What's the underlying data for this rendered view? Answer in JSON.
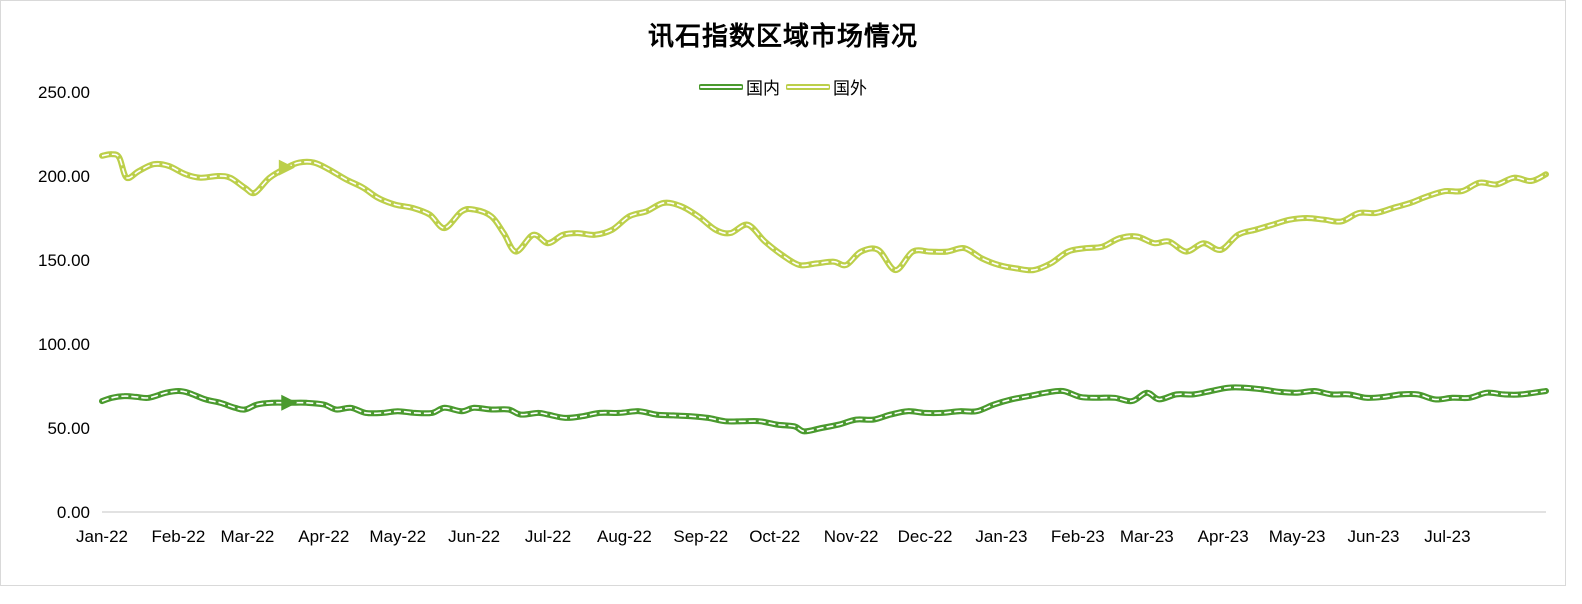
{
  "chart_data": {
    "type": "line",
    "title": "讯石指数区域市场情况",
    "ylim": [
      0,
      250
    ],
    "y_ticks": [
      "0.00",
      "50.00",
      "100.00",
      "150.00",
      "200.00",
      "250.00"
    ],
    "x_tick_labels": [
      "Jan-22",
      "Feb-22",
      "Mar-22",
      "Apr-22",
      "May-22",
      "Jun-22",
      "Jul-22",
      "Aug-22",
      "Sep-22",
      "Oct-22",
      "Nov-22",
      "Dec-22",
      "Jan-23",
      "Feb-23",
      "Mar-23",
      "Apr-23",
      "May-23",
      "Jun-23",
      "Jul-23"
    ],
    "legend_position": "top-center",
    "x_range": [
      "2022-01-01",
      "2023-08-10"
    ],
    "series": [
      {
        "name": "国内",
        "color": "#4a9a2e",
        "points": [
          [
            "2022-01-01",
            66
          ],
          [
            "2022-01-05",
            68
          ],
          [
            "2022-01-10",
            69
          ],
          [
            "2022-01-15",
            68.5
          ],
          [
            "2022-01-20",
            68
          ],
          [
            "2022-01-27",
            71
          ],
          [
            "2022-02-01",
            72
          ],
          [
            "2022-02-05",
            71
          ],
          [
            "2022-02-12",
            67
          ],
          [
            "2022-02-18",
            65
          ],
          [
            "2022-02-24",
            62
          ],
          [
            "2022-02-28",
            61
          ],
          [
            "2022-03-05",
            64
          ],
          [
            "2022-03-11",
            65
          ],
          [
            "2022-03-18",
            65
          ],
          [
            "2022-03-25",
            65
          ],
          [
            "2022-04-01",
            64
          ],
          [
            "2022-04-06",
            61
          ],
          [
            "2022-04-12",
            62
          ],
          [
            "2022-04-18",
            59
          ],
          [
            "2022-04-25",
            59
          ],
          [
            "2022-05-01",
            60
          ],
          [
            "2022-05-08",
            59
          ],
          [
            "2022-05-15",
            59
          ],
          [
            "2022-05-20",
            62
          ],
          [
            "2022-05-27",
            60
          ],
          [
            "2022-06-01",
            62
          ],
          [
            "2022-06-08",
            61
          ],
          [
            "2022-06-15",
            61
          ],
          [
            "2022-06-20",
            58
          ],
          [
            "2022-06-27",
            59
          ],
          [
            "2022-07-01",
            58
          ],
          [
            "2022-07-08",
            56
          ],
          [
            "2022-07-15",
            57
          ],
          [
            "2022-07-22",
            59
          ],
          [
            "2022-07-30",
            59
          ],
          [
            "2022-08-07",
            60
          ],
          [
            "2022-08-14",
            58
          ],
          [
            "2022-08-21",
            57.5
          ],
          [
            "2022-08-28",
            57
          ],
          [
            "2022-09-04",
            56
          ],
          [
            "2022-09-11",
            54
          ],
          [
            "2022-09-18",
            54
          ],
          [
            "2022-09-25",
            54
          ],
          [
            "2022-10-02",
            52
          ],
          [
            "2022-10-09",
            51
          ],
          [
            "2022-10-13",
            48
          ],
          [
            "2022-10-20",
            50
          ],
          [
            "2022-10-27",
            52
          ],
          [
            "2022-11-03",
            55
          ],
          [
            "2022-11-10",
            55
          ],
          [
            "2022-11-17",
            58
          ],
          [
            "2022-11-24",
            60
          ],
          [
            "2022-12-01",
            59
          ],
          [
            "2022-12-08",
            59
          ],
          [
            "2022-12-15",
            60
          ],
          [
            "2022-12-22",
            60
          ],
          [
            "2022-12-29",
            64
          ],
          [
            "2023-01-05",
            67
          ],
          [
            "2023-01-12",
            69
          ],
          [
            "2023-01-19",
            71
          ],
          [
            "2023-01-26",
            72
          ],
          [
            "2023-02-02",
            68.5
          ],
          [
            "2023-02-09",
            68
          ],
          [
            "2023-02-16",
            68
          ],
          [
            "2023-02-23",
            66
          ],
          [
            "2023-03-01",
            71
          ],
          [
            "2023-03-06",
            67
          ],
          [
            "2023-03-13",
            70
          ],
          [
            "2023-03-20",
            70
          ],
          [
            "2023-03-27",
            72
          ],
          [
            "2023-04-03",
            74
          ],
          [
            "2023-04-10",
            74
          ],
          [
            "2023-04-17",
            73
          ],
          [
            "2023-04-24",
            71.5
          ],
          [
            "2023-05-01",
            71
          ],
          [
            "2023-05-08",
            72
          ],
          [
            "2023-05-15",
            70
          ],
          [
            "2023-05-22",
            70
          ],
          [
            "2023-05-29",
            68
          ],
          [
            "2023-06-05",
            68.5
          ],
          [
            "2023-06-12",
            70
          ],
          [
            "2023-06-19",
            70
          ],
          [
            "2023-06-26",
            67
          ],
          [
            "2023-07-03",
            68
          ],
          [
            "2023-07-10",
            68
          ],
          [
            "2023-07-17",
            71
          ],
          [
            "2023-07-24",
            70
          ],
          [
            "2023-07-31",
            70
          ],
          [
            "2023-08-10",
            72
          ]
        ]
      },
      {
        "name": "国外",
        "color": "#bccf4a",
        "points": [
          [
            "2022-01-01",
            212
          ],
          [
            "2022-01-05",
            213
          ],
          [
            "2022-01-08",
            211
          ],
          [
            "2022-01-11",
            199
          ],
          [
            "2022-01-16",
            203
          ],
          [
            "2022-01-22",
            207
          ],
          [
            "2022-01-28",
            206
          ],
          [
            "2022-02-04",
            201
          ],
          [
            "2022-02-10",
            199
          ],
          [
            "2022-02-17",
            200
          ],
          [
            "2022-02-22",
            199
          ],
          [
            "2022-02-28",
            193
          ],
          [
            "2022-03-04",
            190
          ],
          [
            "2022-03-10",
            199
          ],
          [
            "2022-03-17",
            205
          ],
          [
            "2022-03-22",
            208
          ],
          [
            "2022-03-28",
            208
          ],
          [
            "2022-04-03",
            204
          ],
          [
            "2022-04-10",
            198
          ],
          [
            "2022-04-17",
            193
          ],
          [
            "2022-04-23",
            187
          ],
          [
            "2022-04-30",
            183
          ],
          [
            "2022-05-07",
            181
          ],
          [
            "2022-05-14",
            177
          ],
          [
            "2022-05-20",
            169
          ],
          [
            "2022-05-27",
            179
          ],
          [
            "2022-06-01",
            180
          ],
          [
            "2022-06-08",
            176
          ],
          [
            "2022-06-13",
            166
          ],
          [
            "2022-06-18",
            155
          ],
          [
            "2022-06-25",
            165
          ],
          [
            "2022-07-01",
            160
          ],
          [
            "2022-07-07",
            165
          ],
          [
            "2022-07-13",
            166
          ],
          [
            "2022-07-20",
            165
          ],
          [
            "2022-07-27",
            168
          ],
          [
            "2022-08-03",
            176
          ],
          [
            "2022-08-10",
            179
          ],
          [
            "2022-08-17",
            184
          ],
          [
            "2022-08-24",
            182
          ],
          [
            "2022-08-31",
            176
          ],
          [
            "2022-09-07",
            168
          ],
          [
            "2022-09-13",
            166
          ],
          [
            "2022-09-20",
            171
          ],
          [
            "2022-09-27",
            161
          ],
          [
            "2022-10-04",
            153
          ],
          [
            "2022-10-11",
            147
          ],
          [
            "2022-10-18",
            148
          ],
          [
            "2022-10-25",
            149
          ],
          [
            "2022-10-30",
            147
          ],
          [
            "2022-11-05",
            155
          ],
          [
            "2022-11-12",
            156
          ],
          [
            "2022-11-19",
            144
          ],
          [
            "2022-11-26",
            155
          ],
          [
            "2022-12-03",
            155
          ],
          [
            "2022-12-10",
            155
          ],
          [
            "2022-12-17",
            157
          ],
          [
            "2022-12-24",
            151
          ],
          [
            "2022-12-31",
            147
          ],
          [
            "2023-01-07",
            145
          ],
          [
            "2023-01-14",
            144
          ],
          [
            "2023-01-21",
            148
          ],
          [
            "2023-01-28",
            155
          ],
          [
            "2023-02-04",
            157
          ],
          [
            "2023-02-11",
            158
          ],
          [
            "2023-02-18",
            163
          ],
          [
            "2023-02-25",
            164
          ],
          [
            "2023-03-04",
            160
          ],
          [
            "2023-03-10",
            161
          ],
          [
            "2023-03-17",
            155
          ],
          [
            "2023-03-24",
            160
          ],
          [
            "2023-03-31",
            156
          ],
          [
            "2023-04-07",
            165
          ],
          [
            "2023-04-14",
            168
          ],
          [
            "2023-04-21",
            171
          ],
          [
            "2023-04-28",
            174
          ],
          [
            "2023-05-05",
            175
          ],
          [
            "2023-05-12",
            174
          ],
          [
            "2023-05-19",
            173
          ],
          [
            "2023-05-26",
            178
          ],
          [
            "2023-06-02",
            178
          ],
          [
            "2023-06-09",
            181
          ],
          [
            "2023-06-16",
            184
          ],
          [
            "2023-06-23",
            188
          ],
          [
            "2023-06-30",
            191
          ],
          [
            "2023-07-07",
            191
          ],
          [
            "2023-07-14",
            196
          ],
          [
            "2023-07-21",
            195
          ],
          [
            "2023-07-28",
            199
          ],
          [
            "2023-08-04",
            197
          ],
          [
            "2023-08-10",
            201
          ]
        ]
      }
    ]
  }
}
